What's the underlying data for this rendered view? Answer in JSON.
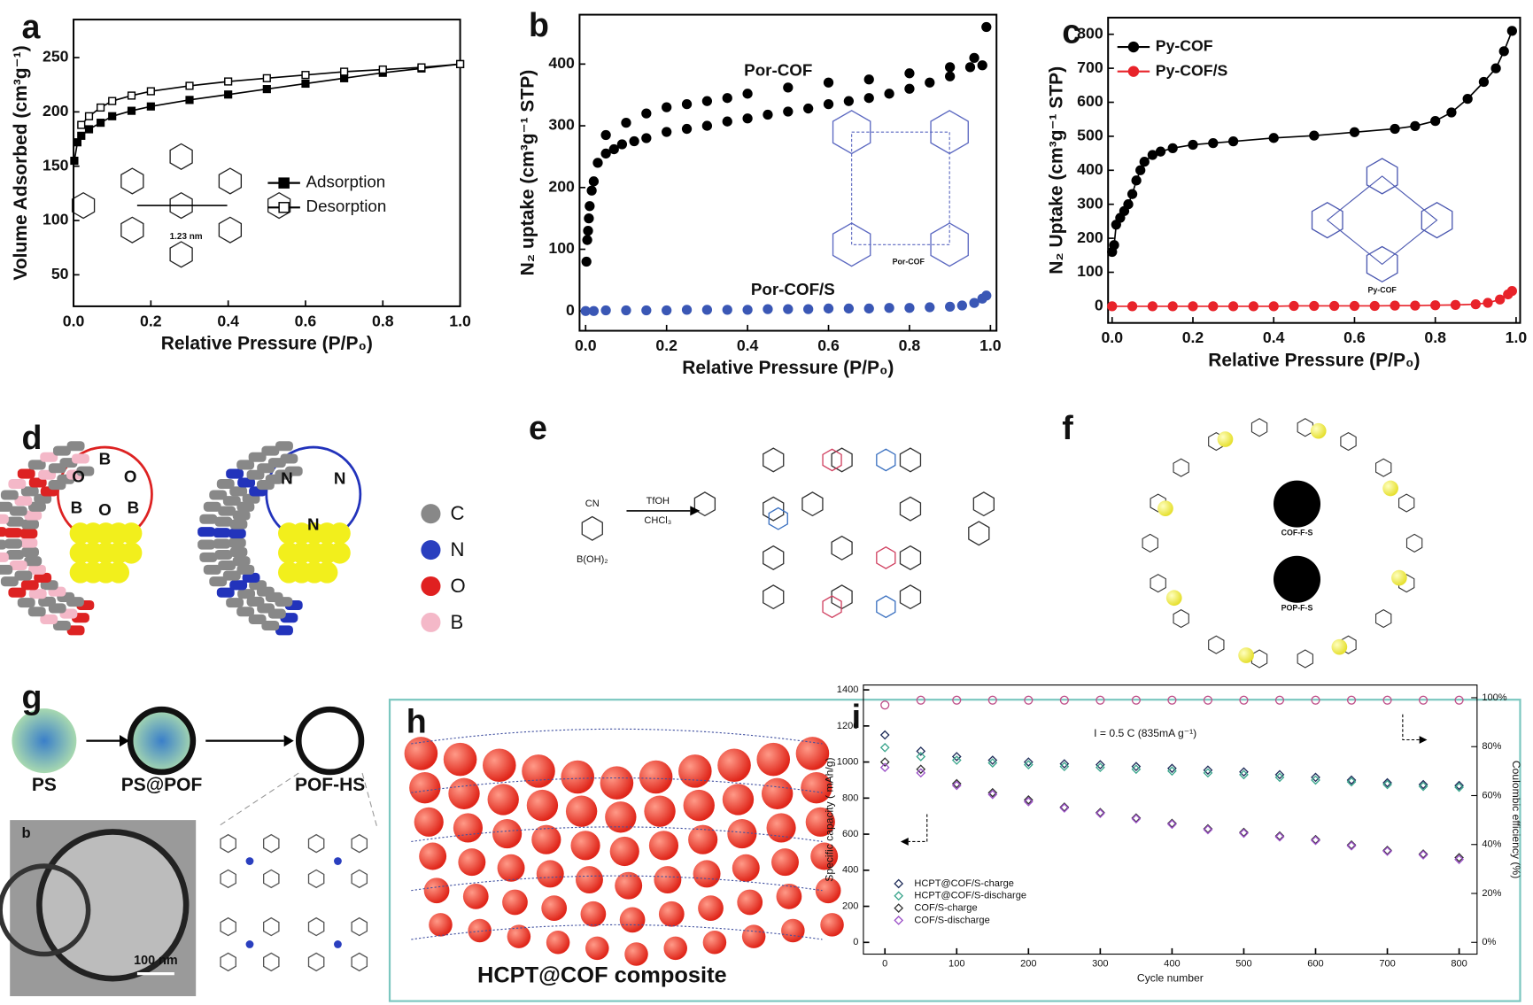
{
  "chart_data": [
    {
      "type": "line",
      "x_label": "Relative Pressure (P/P₀)",
      "y_label": "Volume Adsorbed (cm³g⁻¹)",
      "xlim": [
        0,
        1
      ],
      "xticks": [
        {
          "value": 0,
          "label": "0.0"
        },
        0.2,
        0.4,
        0.6,
        0.8,
        {
          "value": 1,
          "label": "1.0"
        }
      ],
      "ylim": [
        21,
        285
      ],
      "yticks": [
        50,
        100,
        150,
        200,
        250
      ],
      "legend": "center-right",
      "annotations": [
        "1.23 nm"
      ],
      "series": [
        {
          "name": "Adsorption",
          "color": "#000000",
          "marker": "square-filled",
          "x": [
            0.002,
            0.01,
            0.02,
            0.04,
            0.07,
            0.1,
            0.15,
            0.2,
            0.3,
            0.4,
            0.5,
            0.6,
            0.7,
            0.8,
            0.9,
            1.0
          ],
          "values": [
            155,
            172,
            178,
            184,
            190,
            196,
            201,
            205,
            211,
            216,
            221,
            226,
            231,
            236,
            240,
            244
          ]
        },
        {
          "name": "Desorption",
          "color": "#000000",
          "marker": "square-open",
          "x": [
            0.02,
            0.04,
            0.07,
            0.1,
            0.15,
            0.2,
            0.3,
            0.4,
            0.5,
            0.6,
            0.7,
            0.8,
            0.9,
            1.0
          ],
          "values": [
            188,
            196,
            204,
            210,
            215,
            219,
            224,
            228,
            231,
            234,
            237,
            239,
            241,
            244
          ]
        }
      ]
    },
    {
      "type": "scatter",
      "x_label": "Relative Pressure (P/P₀)",
      "y_label": "N₂ uptake (cm³g⁻¹ STP)",
      "xlim": [
        -0.015,
        1.015
      ],
      "xticks": [
        {
          "value": 0,
          "label": "0.0"
        },
        0.2,
        0.4,
        0.6,
        0.8,
        {
          "value": 1,
          "label": "1.0"
        }
      ],
      "ylim": [
        -32,
        480
      ],
      "yticks": [
        0,
        100,
        200,
        300,
        400
      ],
      "legend": "inline",
      "annotations": [
        "Por-COF"
      ],
      "series": [
        {
          "name": "Por-COF",
          "color": "#000000",
          "marker": "circle-filled",
          "x": [
            0.002,
            0.004,
            0.006,
            0.008,
            0.01,
            0.015,
            0.02,
            0.03,
            0.05,
            0.07,
            0.09,
            0.12,
            0.15,
            0.2,
            0.25,
            0.3,
            0.35,
            0.4,
            0.45,
            0.5,
            0.55,
            0.6,
            0.65,
            0.7,
            0.75,
            0.8,
            0.85,
            0.9,
            0.95,
            0.99,
            0.05,
            0.1,
            0.15,
            0.2,
            0.25,
            0.3,
            0.35,
            0.4,
            0.5,
            0.6,
            0.7,
            0.8,
            0.9,
            0.96,
            0.98
          ],
          "values": [
            80,
            115,
            130,
            150,
            170,
            195,
            210,
            240,
            255,
            262,
            270,
            275,
            280,
            290,
            295,
            300,
            307,
            312,
            318,
            323,
            328,
            335,
            340,
            345,
            352,
            360,
            370,
            380,
            395,
            460,
            285,
            305,
            320,
            330,
            335,
            340,
            345,
            352,
            362,
            370,
            375,
            385,
            395,
            410,
            398
          ]
        },
        {
          "name": "Por-COF/S",
          "color": "#3a57b5",
          "marker": "circle-filled",
          "x": [
            0,
            0.02,
            0.05,
            0.1,
            0.15,
            0.2,
            0.25,
            0.3,
            0.35,
            0.4,
            0.45,
            0.5,
            0.55,
            0.6,
            0.65,
            0.7,
            0.75,
            0.8,
            0.85,
            0.9,
            0.93,
            0.96,
            0.98,
            0.99
          ],
          "values": [
            0,
            0,
            1,
            1,
            1,
            1,
            2,
            2,
            2,
            2,
            3,
            3,
            3,
            4,
            4,
            4,
            5,
            5,
            6,
            7,
            9,
            13,
            20,
            25
          ]
        }
      ]
    },
    {
      "type": "line",
      "x_label": "Relative Pressure (P/P₀)",
      "y_label": "N₂ Uptake (cm³g⁻¹ STP)",
      "xlim": [
        -0.01,
        1.01
      ],
      "xticks": [
        {
          "value": 0,
          "label": "0.0"
        },
        0.2,
        0.4,
        0.6,
        0.8,
        {
          "value": 1,
          "label": "1.0"
        }
      ],
      "ylim": [
        -49,
        849
      ],
      "yticks": [
        0,
        100,
        200,
        300,
        400,
        500,
        600,
        700,
        800
      ],
      "legend": "upper-left",
      "annotations": [
        "Py-COF"
      ],
      "series": [
        {
          "name": "Py-COF",
          "color": "#000000",
          "marker": "circle-filled",
          "x": [
            0,
            0.005,
            0.01,
            0.02,
            0.03,
            0.04,
            0.05,
            0.06,
            0.07,
            0.08,
            0.1,
            0.12,
            0.15,
            0.2,
            0.25,
            0.3,
            0.4,
            0.5,
            0.6,
            0.7,
            0.75,
            0.8,
            0.84,
            0.88,
            0.92,
            0.95,
            0.97,
            0.99
          ],
          "values": [
            160,
            180,
            240,
            260,
            280,
            300,
            330,
            370,
            400,
            425,
            445,
            455,
            465,
            475,
            480,
            485,
            495,
            502,
            512,
            522,
            530,
            545,
            570,
            610,
            660,
            700,
            750,
            810
          ]
        },
        {
          "name": "Py-COF/S",
          "color": "#e8232a",
          "marker": "circle-filled",
          "x": [
            0,
            0.05,
            0.1,
            0.15,
            0.2,
            0.25,
            0.3,
            0.35,
            0.4,
            0.45,
            0.5,
            0.55,
            0.6,
            0.65,
            0.7,
            0.75,
            0.8,
            0.85,
            0.9,
            0.93,
            0.96,
            0.98,
            0.99
          ],
          "values": [
            0,
            0,
            0,
            0,
            0,
            0,
            0,
            0,
            0,
            1,
            1,
            1,
            1,
            1,
            2,
            2,
            3,
            4,
            6,
            10,
            20,
            35,
            45
          ]
        }
      ]
    },
    {
      "type": "scatter",
      "x_label": "Cycle number",
      "y_label": "Specific capacity ( mAh/g)",
      "y2_label": "Coulombic efficiency (%)",
      "xlim": [
        -30,
        825
      ],
      "xticks": [
        0,
        100,
        200,
        300,
        400,
        500,
        600,
        700,
        800
      ],
      "ylim": [
        -65,
        1427
      ],
      "yticks": [
        0,
        200,
        400,
        600,
        800,
        1000,
        1200,
        1400
      ],
      "y2lim": [
        -4.8,
        105.2
      ],
      "y2ticks": [
        {
          "value": 0,
          "label": "0%"
        },
        {
          "value": 20,
          "label": "20%"
        },
        {
          "value": 40,
          "label": "40%"
        },
        {
          "value": 60,
          "label": "60%"
        },
        {
          "value": 80,
          "label": "80%"
        },
        {
          "value": 100,
          "label": "100%"
        }
      ],
      "legend": "lower-left",
      "annotations": [
        "I = 0.5 C (835mA g⁻¹)"
      ],
      "series": [
        {
          "name": "HCPT@COF/S-charge",
          "color": "#1f2d5a",
          "marker": "diamond-open",
          "x": [
            0,
            50,
            100,
            150,
            200,
            250,
            300,
            350,
            400,
            450,
            500,
            550,
            600,
            650,
            700,
            750,
            800
          ],
          "values": [
            1150,
            1060,
            1030,
            1010,
            1000,
            990,
            985,
            975,
            965,
            955,
            945,
            930,
            915,
            900,
            885,
            875,
            870
          ]
        },
        {
          "name": "HCPT@COF/S-discharge",
          "color": "#3aa58c",
          "marker": "diamond-open",
          "x": [
            0,
            50,
            100,
            150,
            200,
            250,
            300,
            350,
            400,
            450,
            500,
            550,
            600,
            650,
            700,
            750,
            800
          ],
          "values": [
            1080,
            1030,
            1010,
            995,
            985,
            975,
            970,
            960,
            950,
            940,
            930,
            915,
            900,
            890,
            875,
            865,
            860
          ]
        },
        {
          "name": "COF/S-charge",
          "color": "#333333",
          "marker": "diamond-open",
          "x": [
            0,
            50,
            100,
            150,
            200,
            250,
            300,
            350,
            400,
            450,
            500,
            550,
            600,
            650,
            700,
            750,
            800
          ],
          "values": [
            1000,
            960,
            880,
            830,
            790,
            750,
            720,
            690,
            660,
            630,
            610,
            590,
            570,
            540,
            510,
            490,
            470
          ]
        },
        {
          "name": "COF/S-discharge",
          "color": "#9b4fc7",
          "marker": "diamond-open",
          "x": [
            0,
            50,
            100,
            150,
            200,
            250,
            300,
            350,
            400,
            450,
            500,
            550,
            600,
            650,
            700,
            750,
            800
          ],
          "values": [
            970,
            940,
            870,
            820,
            780,
            745,
            715,
            685,
            655,
            625,
            605,
            585,
            565,
            535,
            505,
            485,
            460
          ]
        },
        {
          "color": "#c0508a",
          "marker": "circle-open",
          "axis": "y2",
          "x": [
            0,
            50,
            100,
            150,
            200,
            250,
            300,
            350,
            400,
            450,
            500,
            550,
            600,
            650,
            700,
            750,
            800
          ],
          "values": [
            97,
            99,
            99,
            99,
            99,
            99,
            99,
            99,
            99,
            99,
            99,
            99,
            99,
            99,
            99,
            99,
            99
          ]
        }
      ]
    }
  ],
  "panels": [
    "a",
    "b",
    "c",
    "d",
    "e",
    "f",
    "g",
    "h",
    "i"
  ],
  "diagrams": {
    "d": {
      "ring1": [
        "B",
        "O",
        "O",
        "B",
        "O",
        "B"
      ],
      "ring2": [
        "N",
        "N",
        "N"
      ],
      "legend": [
        "C",
        "N",
        "O",
        "B"
      ]
    },
    "e": [
      "CN",
      "TfOH",
      "CHCl₃",
      "B(OH)₂"
    ],
    "f": [
      "COF-F-S",
      "POP-F-S"
    ],
    "g": [
      "PS",
      "PS@POF",
      "POF-HS",
      "b",
      "100 nm"
    ],
    "h": [
      "HCPT@COF composite"
    ]
  }
}
